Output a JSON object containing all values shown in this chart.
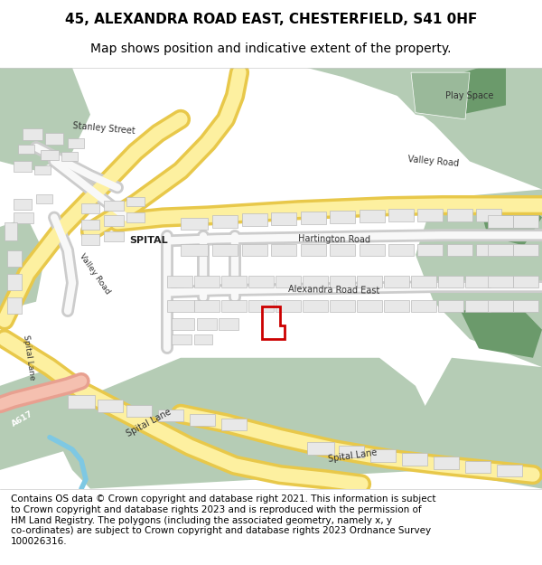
{
  "title_line1": "45, ALEXANDRA ROAD EAST, CHESTERFIELD, S41 0HF",
  "title_line2": "Map shows position and indicative extent of the property.",
  "footer_text": "Contains OS data © Crown copyright and database right 2021. This information is subject\nto Crown copyright and database rights 2023 and is reproduced with the permission of\nHM Land Registry. The polygons (including the associated geometry, namely x, y\nco-ordinates) are subject to Crown copyright and database rights 2023 Ordnance Survey\n100026316.",
  "bg_color": "#ffffff",
  "map_bg": "#f0f0f0",
  "green_color": "#b5ccb5",
  "dark_green": "#6b9a6b",
  "road_fill": "#fdf6d3",
  "road_edge": "#e8c84a",
  "building_fill": "#e8e8e8",
  "building_edge": "#bbbbbb",
  "water_color": "#7ec8e3",
  "red_polygon": "#cc0000",
  "label_color": "#333333",
  "title_fontsize": 11,
  "subtitle_fontsize": 10,
  "footer_fontsize": 7.5,
  "label_fontsize": 7
}
